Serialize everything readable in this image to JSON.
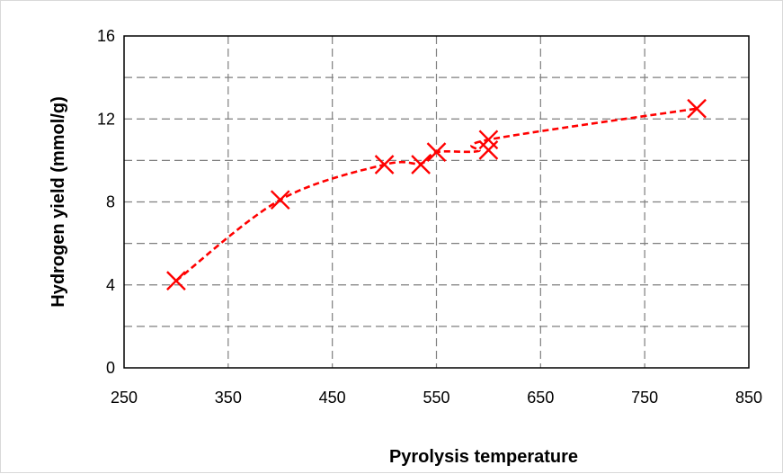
{
  "chart_data": {
    "type": "scatter",
    "title": "",
    "xlabel": "Pyrolysis temperature",
    "ylabel": "Hydrogen yield (mmol/g)",
    "xlim": [
      250,
      850
    ],
    "ylim": [
      0,
      16
    ],
    "xticks": [
      250,
      350,
      450,
      550,
      650,
      750,
      850
    ],
    "yticks": [
      0,
      4,
      8,
      12,
      16
    ],
    "yminor_gridlines": [
      2,
      6,
      10,
      14
    ],
    "grid": true,
    "legend": "none",
    "series": [
      {
        "marker": "x",
        "color": "#ff0000",
        "trendline": "dashed",
        "points": [
          {
            "x": 300,
            "y": 4.2
          },
          {
            "x": 400,
            "y": 8.1
          },
          {
            "x": 500,
            "y": 9.8
          },
          {
            "x": 535,
            "y": 9.8
          },
          {
            "x": 550,
            "y": 10.4
          },
          {
            "x": 600,
            "y": 10.5
          },
          {
            "x": 600,
            "y": 11.0
          },
          {
            "x": 800,
            "y": 12.5
          }
        ]
      }
    ],
    "trend_curve": [
      {
        "x": 300,
        "y": 4.2
      },
      {
        "x": 400,
        "y": 8.1
      },
      {
        "x": 500,
        "y": 9.8
      },
      {
        "x": 535,
        "y": 9.85
      },
      {
        "x": 550,
        "y": 10.4
      },
      {
        "x": 590,
        "y": 10.45
      },
      {
        "x": 600,
        "y": 11.0
      },
      {
        "x": 800,
        "y": 12.5
      }
    ]
  }
}
